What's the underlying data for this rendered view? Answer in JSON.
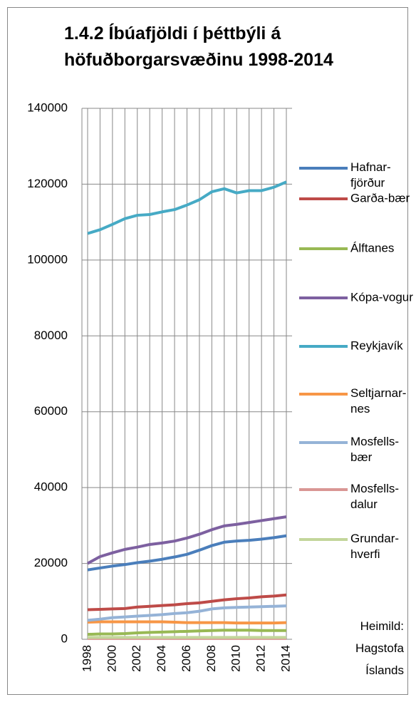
{
  "chart_data": {
    "type": "line",
    "title": "1.4.2 Íbúafjöldi í þéttbýli á\nhöfuðborgarsvæðinu 1998-2014",
    "categories": [
      "1998",
      null,
      "2000",
      null,
      "2002",
      null,
      "2004",
      null,
      "2006",
      null,
      "2008",
      null,
      "2010",
      null,
      "2012",
      null,
      "2014"
    ],
    "ylim": [
      0,
      140000
    ],
    "yticks": [
      0,
      20000,
      40000,
      60000,
      80000,
      100000,
      120000,
      140000
    ],
    "grid": true,
    "legend": "right",
    "series": [
      {
        "name": "Hafnar-\nfjörður",
        "color": "#4a7ebb",
        "values": [
          18300,
          18800,
          19300,
          19700,
          20200,
          20600,
          21100,
          21700,
          22400,
          23500,
          24700,
          25600,
          25900,
          26100,
          26400,
          26800,
          27300
        ]
      },
      {
        "name": "Garða-bær",
        "color": "#be4b48",
        "values": [
          7800,
          7900,
          8000,
          8100,
          8500,
          8700,
          8900,
          9100,
          9400,
          9600,
          10000,
          10400,
          10700,
          10900,
          11200,
          11400,
          11700
        ]
      },
      {
        "name": "Álftanes",
        "color": "#98b954",
        "values": [
          1300,
          1400,
          1400,
          1500,
          1700,
          1800,
          1900,
          2000,
          2100,
          2200,
          2300,
          2400,
          2400,
          2400,
          2300,
          2300,
          2300
        ]
      },
      {
        "name": "Kópa-vogur",
        "color": "#7d60a0",
        "values": [
          20000,
          21800,
          22800,
          23700,
          24300,
          25000,
          25400,
          25900,
          26700,
          27700,
          28900,
          29900,
          30300,
          30800,
          31300,
          31800,
          32300
        ]
      },
      {
        "name": "Reykjavík",
        "color": "#46aac5",
        "values": [
          107000,
          108000,
          109400,
          110900,
          111800,
          112000,
          112700,
          113300,
          114500,
          115900,
          118000,
          118800,
          117700,
          118300,
          118300,
          119200,
          120600
        ]
      },
      {
        "name": "Seltjarnar-\nnes",
        "color": "#f79646",
        "values": [
          4500,
          4600,
          4600,
          4600,
          4600,
          4600,
          4600,
          4500,
          4400,
          4400,
          4400,
          4400,
          4300,
          4300,
          4300,
          4300,
          4400
        ]
      },
      {
        "name": "Mosfells-\nbær",
        "color": "#95b3d7",
        "values": [
          5000,
          5300,
          5700,
          5900,
          6100,
          6300,
          6500,
          6800,
          7000,
          7400,
          8000,
          8300,
          8400,
          8500,
          8600,
          8700,
          8800
        ]
      },
      {
        "name": "Mosfells-\ndalur",
        "color": "#d99694",
        "values": [
          200,
          200,
          200,
          200,
          200,
          200,
          200,
          200,
          200,
          200,
          200,
          200,
          200,
          200,
          200,
          200,
          200
        ]
      },
      {
        "name": "Grundar-\nhverfi",
        "color": "#c3d69b",
        "values": [
          500,
          500,
          500,
          500,
          500,
          500,
          500,
          500,
          500,
          500,
          500,
          500,
          500,
          500,
          500,
          500,
          500
        ]
      }
    ],
    "annotations": [
      "Heimild:\nHagstofa\nÍslands"
    ]
  }
}
